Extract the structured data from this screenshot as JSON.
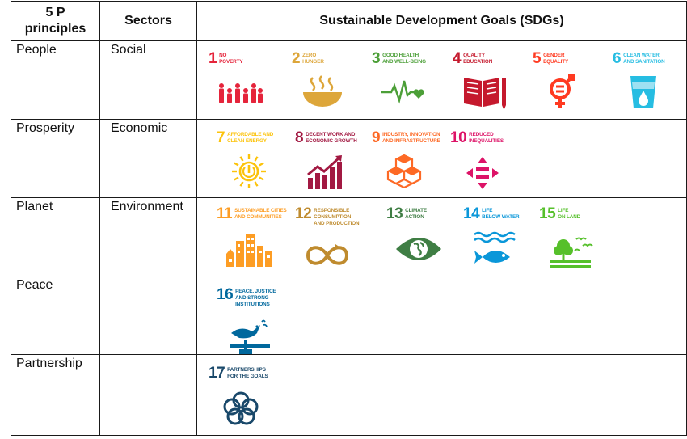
{
  "header": {
    "col1": "5 P\nprinciples",
    "col2": "Sectors",
    "col3": "Sustainable Development Goals (SDGs)"
  },
  "rows": [
    {
      "principle": "People",
      "sector": "Social"
    },
    {
      "principle": "Prosperity",
      "sector": "Economic"
    },
    {
      "principle": "Planet",
      "sector": "Environment"
    },
    {
      "principle": "Peace",
      "sector": ""
    },
    {
      "principle": "Partnership",
      "sector": ""
    }
  ],
  "goals": [
    {
      "num": "1",
      "l1": "NO",
      "l2": "POVERTY",
      "l3": "",
      "color": "#E5243B",
      "icon": "people-family-icon"
    },
    {
      "num": "2",
      "l1": "ZERO",
      "l2": "HUNGER",
      "l3": "",
      "color": "#DDA63A",
      "icon": "bowl-icon"
    },
    {
      "num": "3",
      "l1": "GOOD HEALTH",
      "l2": "AND WELL-BEING",
      "l3": "",
      "color": "#4C9F38",
      "icon": "heartbeat-icon"
    },
    {
      "num": "4",
      "l1": "QUALITY",
      "l2": "EDUCATION",
      "l3": "",
      "color": "#C5192D",
      "icon": "book-pencil-icon"
    },
    {
      "num": "5",
      "l1": "GENDER",
      "l2": "EQUALITY",
      "l3": "",
      "color": "#FF3A21",
      "icon": "gender-equality-icon"
    },
    {
      "num": "6",
      "l1": "CLEAN WATER",
      "l2": "AND SANITATION",
      "l3": "",
      "color": "#26BDE2",
      "icon": "water-glass-icon"
    },
    {
      "num": "7",
      "l1": "AFFORDABLE AND",
      "l2": "CLEAN ENERGY",
      "l3": "",
      "color": "#FCC30B",
      "icon": "sun-power-icon"
    },
    {
      "num": "8",
      "l1": "DECENT WORK AND",
      "l2": "ECONOMIC GROWTH",
      "l3": "",
      "color": "#A21942",
      "icon": "growth-chart-icon"
    },
    {
      "num": "9",
      "l1": "INDUSTRY, INNOVATION",
      "l2": "AND INFRASTRUCTURE",
      "l3": "",
      "color": "#FD6925",
      "icon": "cubes-icon"
    },
    {
      "num": "10",
      "l1": "REDUCED",
      "l2": "INEQUALITIES",
      "l3": "",
      "color": "#DD1367",
      "icon": "equality-arrows-icon"
    },
    {
      "num": "11",
      "l1": "SUSTAINABLE CITIES",
      "l2": "AND COMMUNITIES",
      "l3": "",
      "color": "#FD9D24",
      "icon": "city-icon"
    },
    {
      "num": "12",
      "l1": "RESPONSIBLE",
      "l2": "CONSUMPTION",
      "l3": "AND PRODUCTION",
      "color": "#BF8B2E",
      "icon": "infinity-loop-icon"
    },
    {
      "num": "13",
      "l1": "CLIMATE",
      "l2": "ACTION",
      "l3": "",
      "color": "#3F7E44",
      "icon": "earth-eye-icon"
    },
    {
      "num": "14",
      "l1": "LIFE",
      "l2": "BELOW WATER",
      "l3": "",
      "color": "#0A97D9",
      "icon": "fish-waves-icon"
    },
    {
      "num": "15",
      "l1": "LIFE",
      "l2": "ON LAND",
      "l3": "",
      "color": "#56C02B",
      "icon": "tree-birds-icon"
    },
    {
      "num": "16",
      "l1": "PEACE, JUSTICE",
      "l2": "AND STRONG",
      "l3": "INSTITUTIONS",
      "color": "#00689D",
      "icon": "dove-gavel-icon"
    },
    {
      "num": "17",
      "l1": "PARTNERSHIPS",
      "l2": "FOR THE GOALS",
      "l3": "",
      "color": "#19486A",
      "icon": "rings-icon"
    }
  ]
}
